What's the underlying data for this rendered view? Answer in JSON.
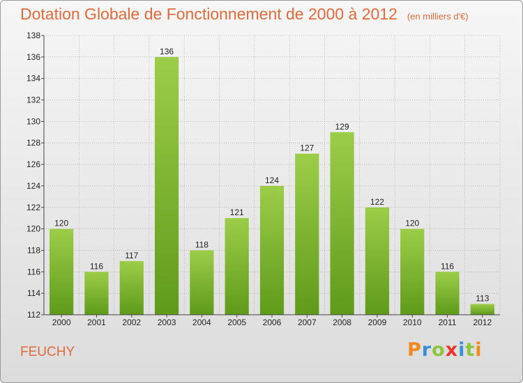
{
  "title": "Dotation Globale de Fonctionnement de 2000 à 2012",
  "subtitle": "(en milliers d'€)",
  "commune": "FEUCHY",
  "brand": {
    "text": "Proxiti",
    "letter_colors": [
      "#f08a1c",
      "#3a8fd6",
      "#8cc63f",
      "#e8342c",
      "#3a8fd6",
      "#8cc63f",
      "#f08a1c"
    ]
  },
  "colors": {
    "accent": "#e06a3a",
    "bar_top": "#9ccd49",
    "bar_bottom": "#5f9a1a",
    "label": "#222222",
    "grid": "#9a9a9a"
  },
  "chart_data": {
    "type": "bar",
    "categories": [
      "2000",
      "2001",
      "2002",
      "2003",
      "2004",
      "2005",
      "2006",
      "2007",
      "2008",
      "2009",
      "2010",
      "2011",
      "2012"
    ],
    "values": [
      120,
      116,
      117,
      136,
      118,
      121,
      124,
      127,
      129,
      122,
      120,
      116,
      113
    ],
    "data_labels": [
      "120",
      "116",
      "117",
      "136",
      "118",
      "121",
      "124",
      "127",
      "129",
      "122",
      "120",
      "116",
      "113"
    ],
    "ylim": [
      112,
      138
    ],
    "yticks": [
      "112",
      "114",
      "116",
      "118",
      "120",
      "122",
      "124",
      "126",
      "128",
      "130",
      "132",
      "134",
      "136",
      "138"
    ],
    "grid": true,
    "xlabel": "",
    "ylabel": ""
  }
}
